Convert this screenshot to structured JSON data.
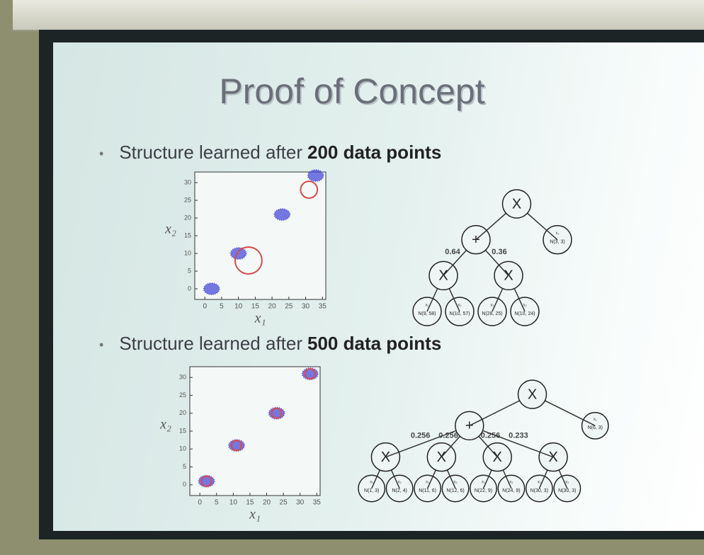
{
  "slide": {
    "title": "Proof of Concept",
    "sections": [
      {
        "bullet": {
          "text": "Structure learned after",
          "bold": "200 data points"
        },
        "chart_data": {
          "type": "scatter",
          "x_label": "x₁",
          "y_label": "x₂",
          "xlim": [
            -3,
            36
          ],
          "ylim": [
            -3,
            33
          ],
          "xticks": [
            0,
            5,
            10,
            15,
            20,
            25,
            30,
            35
          ],
          "yticks": [
            0,
            5,
            10,
            15,
            20,
            25,
            30
          ],
          "color": "#4b4bd8",
          "highlight_color": "#d84a4a",
          "clusters": {
            "x": [
              2,
              10,
              23,
              33
            ],
            "y": [
              0,
              10,
              21,
              32
            ]
          },
          "highlights": {
            "x": [
              13,
              31
            ],
            "y": [
              8,
              28
            ],
            "r": [
              4,
              2.5
            ]
          }
        },
        "tree": {
          "label": "X",
          "children": [
            {
              "label": "+",
              "children": [
                {
                  "label": "X",
                  "weight": "0.64",
                  "children": [
                    {
                      "label": "N(9, 58)",
                      "var": "x₁"
                    },
                    {
                      "label": "N(10, 57)",
                      "var": "x₂"
                    }
                  ]
                },
                {
                  "label": "X",
                  "weight": "0.36",
                  "children": [
                    {
                      "label": "N(28, 25)",
                      "var": "x₁"
                    },
                    {
                      "label": "N(10, 24)",
                      "var": "x₂"
                    }
                  ]
                }
              ]
            },
            {
              "label": "N(3, 3)",
              "var": "x₁"
            }
          ]
        }
      },
      {
        "bullet": {
          "text": "Structure learned after",
          "bold": "500 data points"
        },
        "chart_data": {
          "type": "scatter",
          "x_label": "x₁",
          "y_label": "x₂",
          "xlim": [
            -3,
            36
          ],
          "ylim": [
            -3,
            33
          ],
          "xticks": [
            0,
            5,
            10,
            15,
            20,
            25,
            30,
            35
          ],
          "yticks": [
            0,
            5,
            10,
            15,
            20,
            25,
            30
          ],
          "color": "#4b4bd8",
          "highlight_color": "#d84a4a",
          "clusters": {
            "x": [
              2,
              11,
              23,
              33
            ],
            "y": [
              1,
              11,
              20,
              31
            ]
          },
          "highlights": {
            "x": [
              2,
              11,
              23,
              33
            ],
            "y": [
              1,
              11,
              20,
              31
            ],
            "r": [
              1.5,
              1.5,
              1.5,
              1.5
            ]
          }
        },
        "tree": {
          "label": "X",
          "children": [
            {
              "label": "+",
              "children": [
                {
                  "label": "X",
                  "weight": "0.256",
                  "children": [
                    {
                      "label": "N(1, 3)",
                      "var": "x₁"
                    },
                    {
                      "label": "N(2, 4)",
                      "var": "x₂"
                    }
                  ]
                },
                {
                  "label": "X",
                  "weight": "0.256",
                  "children": [
                    {
                      "label": "N(11, 6)",
                      "var": "x₁"
                    },
                    {
                      "label": "N(12, 6)",
                      "var": "x₂"
                    }
                  ]
                },
                {
                  "label": "X",
                  "weight": "0.256",
                  "children": [
                    {
                      "label": "N(22, 9)",
                      "var": "x₁"
                    },
                    {
                      "label": "N(24, 9)",
                      "var": "x₂"
                    }
                  ]
                },
                {
                  "label": "X",
                  "weight": "0.233",
                  "children": [
                    {
                      "label": "N(30, 3)",
                      "var": "x₁"
                    },
                    {
                      "label": "N(30, 3)",
                      "var": "x₂"
                    }
                  ]
                }
              ]
            },
            {
              "label": "N(6, 3)",
              "var": "x₁"
            }
          ]
        }
      }
    ]
  }
}
